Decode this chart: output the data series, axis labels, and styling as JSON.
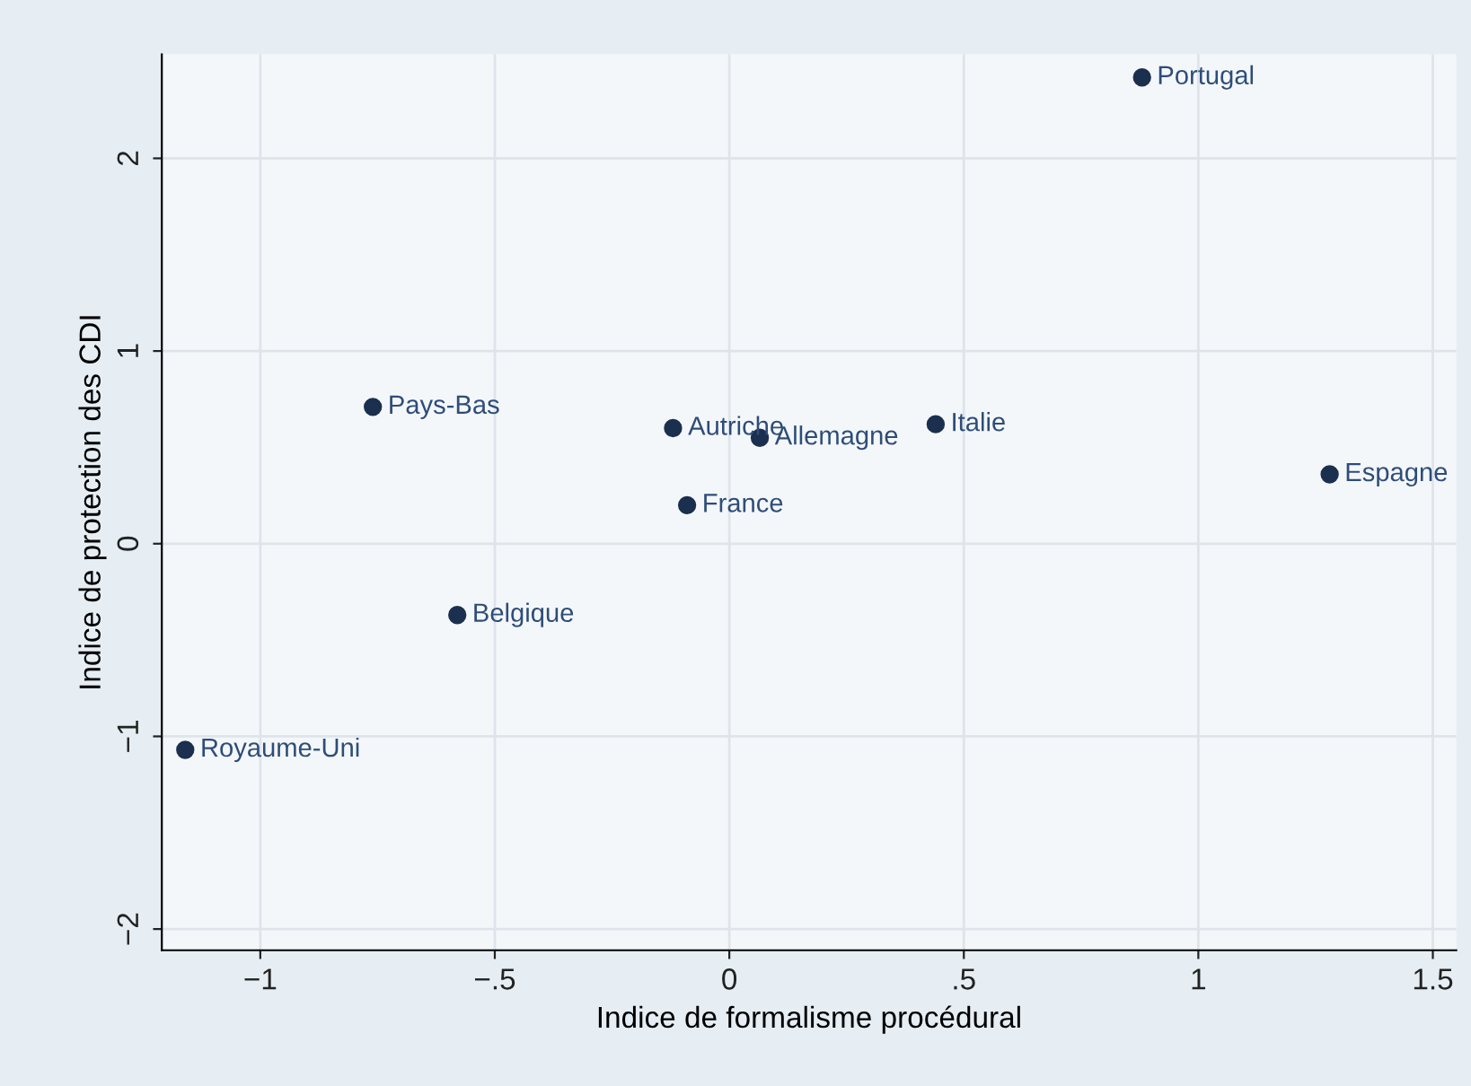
{
  "chart_data": {
    "type": "scatter",
    "xlabel": "Indice de formalisme procédural",
    "ylabel": "Indice de protection des CDI",
    "x": [
      0.88,
      -0.76,
      -0.12,
      0.065,
      0.44,
      1.28,
      -0.09,
      -0.58,
      -1.16
    ],
    "series": [
      {
        "color": "#1b2f4e",
        "values": [
          2.42,
          0.71,
          0.6,
          0.55,
          0.62,
          0.36,
          0.2,
          -0.37,
          -1.07
        ]
      }
    ],
    "annotations": [
      {
        "text": "Portugal",
        "x": 0.88,
        "y": 2.42
      },
      {
        "text": "Pays-Bas",
        "x": -0.76,
        "y": 0.71
      },
      {
        "text": "Autriche",
        "x": -0.12,
        "y": 0.6
      },
      {
        "text": "Allemagne",
        "x": 0.065,
        "y": 0.55
      },
      {
        "text": "Italie",
        "x": 0.44,
        "y": 0.62
      },
      {
        "text": "Espagne",
        "x": 1.28,
        "y": 0.36
      },
      {
        "text": "France",
        "x": -0.09,
        "y": 0.2
      },
      {
        "text": "Belgique",
        "x": -0.58,
        "y": -0.37
      },
      {
        "text": "Royaume-Uni",
        "x": -1.16,
        "y": -1.07
      }
    ],
    "xlim": [
      -1.21,
      1.55
    ],
    "ylim": [
      -2.11,
      2.54
    ],
    "xticks": [
      {
        "value": -1,
        "label": "−1"
      },
      {
        "value": -0.5,
        "label": "−.5"
      },
      0,
      {
        "value": 0.5,
        "label": ".5"
      },
      1,
      1.5
    ],
    "yticks": [
      {
        "value": -2,
        "label": "−2"
      },
      {
        "value": -1,
        "label": "−1"
      },
      0,
      1,
      2
    ],
    "grid": true,
    "marker": "circle",
    "legend": false
  }
}
